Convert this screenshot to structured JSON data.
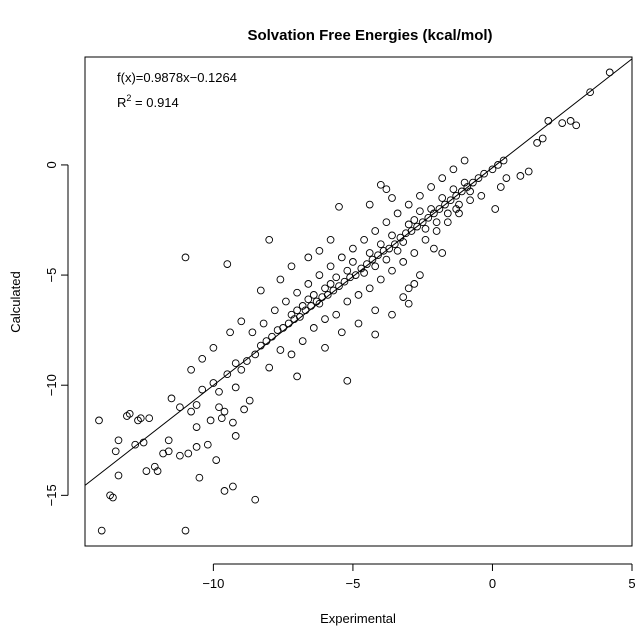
{
  "chart_data": {
    "type": "scatter",
    "title": "Solvation Free Energies (kcal/mol)",
    "xlabel": "Experimental",
    "ylabel": "Calculated",
    "xlim": [
      -14.6,
      5.0
    ],
    "ylim": [
      -17.3,
      4.9
    ],
    "xticks": [
      -10,
      -5,
      0,
      5
    ],
    "yticks": [
      -15,
      -10,
      -5,
      0
    ],
    "xtick_labels": [
      "−10",
      "−5",
      "0",
      "5"
    ],
    "ytick_labels": [
      "−15",
      "−10",
      "−5",
      "0"
    ],
    "grid": false,
    "legend": "none",
    "annotations": {
      "equation": "f(x)=0.9878x−0.1264",
      "r2_label": "R",
      "r2_exp": "2",
      "r2_value": " = 0.914"
    },
    "fit_line": {
      "slope": 0.9878,
      "intercept": -0.1264
    },
    "marker_color": "#000000",
    "series": [
      {
        "points": [
          [
            -14.1,
            -11.6
          ],
          [
            -14.0,
            -16.6
          ],
          [
            -13.7,
            -15.0
          ],
          [
            -13.6,
            -15.1
          ],
          [
            -13.5,
            -13.0
          ],
          [
            -13.4,
            -12.5
          ],
          [
            -13.4,
            -14.1
          ],
          [
            -13.0,
            -11.3
          ],
          [
            -12.8,
            -12.7
          ],
          [
            -12.7,
            -11.6
          ],
          [
            -12.6,
            -11.5
          ],
          [
            -12.5,
            -12.6
          ],
          [
            -12.3,
            -11.5
          ],
          [
            -12.1,
            -13.7
          ],
          [
            -12.0,
            -13.9
          ],
          [
            -11.8,
            -13.1
          ],
          [
            -11.6,
            -12.5
          ],
          [
            -11.6,
            -13.0
          ],
          [
            -11.2,
            -13.2
          ],
          [
            -11.0,
            -16.6
          ],
          [
            -10.9,
            -13.1
          ],
          [
            -10.6,
            -12.8
          ],
          [
            -10.6,
            -10.9
          ],
          [
            -10.5,
            -14.2
          ],
          [
            -10.2,
            -12.7
          ],
          [
            -9.9,
            -13.4
          ],
          [
            -9.6,
            -14.8
          ],
          [
            -9.6,
            -11.2
          ],
          [
            -9.3,
            -14.6
          ],
          [
            -9.2,
            -12.3
          ],
          [
            -8.5,
            -15.2
          ],
          [
            -11.0,
            -4.2
          ],
          [
            -9.5,
            -4.5
          ],
          [
            -8.0,
            -3.4
          ],
          [
            -5.5,
            -1.9
          ],
          [
            -9.7,
            -11.5
          ],
          [
            -8.7,
            -10.7
          ],
          [
            -13.1,
            -11.4
          ],
          [
            -12.4,
            -13.9
          ],
          [
            -9.3,
            -11.7
          ],
          [
            -8.9,
            -11.1
          ],
          [
            -10.1,
            -11.6
          ],
          [
            -7.0,
            -9.6
          ],
          [
            -5.2,
            -9.8
          ],
          [
            -4.2,
            -7.7
          ],
          [
            -3.2,
            -6.0
          ],
          [
            -2.8,
            -5.4
          ],
          [
            -3.0,
            -6.3
          ],
          [
            -2.1,
            -3.8
          ],
          [
            -1.8,
            -4.0
          ],
          [
            -1.3,
            -2.0
          ],
          [
            -0.8,
            -1.2
          ],
          [
            0.1,
            -2.0
          ],
          [
            0.3,
            -1.0
          ],
          [
            0.5,
            -0.6
          ],
          [
            1.0,
            -0.5
          ],
          [
            1.3,
            -0.3
          ],
          [
            1.6,
            1.0
          ],
          [
            2.0,
            2.0
          ],
          [
            2.5,
            1.9
          ],
          [
            3.0,
            1.8
          ],
          [
            3.5,
            3.3
          ],
          [
            4.2,
            4.2
          ],
          [
            2.8,
            2.0
          ],
          [
            1.8,
            1.2
          ],
          [
            -11.5,
            -10.6
          ],
          [
            -11.2,
            -11.0
          ],
          [
            -10.8,
            -11.2
          ],
          [
            -10.4,
            -10.2
          ],
          [
            -10.0,
            -9.9
          ],
          [
            -9.8,
            -10.3
          ],
          [
            -9.5,
            -9.5
          ],
          [
            -9.2,
            -9.0
          ],
          [
            -9.0,
            -9.3
          ],
          [
            -8.8,
            -8.9
          ],
          [
            -8.5,
            -8.6
          ],
          [
            -8.3,
            -8.2
          ],
          [
            -8.1,
            -8.0
          ],
          [
            -7.9,
            -7.8
          ],
          [
            -7.7,
            -7.5
          ],
          [
            -7.5,
            -7.4
          ],
          [
            -7.3,
            -7.2
          ],
          [
            -7.1,
            -7.0
          ],
          [
            -6.9,
            -6.9
          ],
          [
            -6.7,
            -6.6
          ],
          [
            -6.5,
            -6.4
          ],
          [
            -6.3,
            -6.2
          ],
          [
            -6.1,
            -6.0
          ],
          [
            -5.9,
            -5.9
          ],
          [
            -5.7,
            -5.7
          ],
          [
            -5.5,
            -5.5
          ],
          [
            -5.3,
            -5.3
          ],
          [
            -5.1,
            -5.1
          ],
          [
            -4.9,
            -5.0
          ],
          [
            -4.7,
            -4.7
          ],
          [
            -4.5,
            -4.5
          ],
          [
            -4.3,
            -4.3
          ],
          [
            -4.1,
            -4.1
          ],
          [
            -3.9,
            -3.9
          ],
          [
            -3.7,
            -3.8
          ],
          [
            -3.5,
            -3.6
          ],
          [
            -3.3,
            -3.3
          ],
          [
            -3.1,
            -3.1
          ],
          [
            -2.9,
            -3.0
          ],
          [
            -2.7,
            -2.8
          ],
          [
            -2.5,
            -2.6
          ],
          [
            -2.3,
            -2.4
          ],
          [
            -2.1,
            -2.2
          ],
          [
            -1.9,
            -2.0
          ],
          [
            -1.7,
            -1.8
          ],
          [
            -1.5,
            -1.6
          ],
          [
            -1.3,
            -1.4
          ],
          [
            -1.1,
            -1.2
          ],
          [
            -0.9,
            -1.0
          ],
          [
            -0.7,
            -0.8
          ],
          [
            -0.5,
            -0.6
          ],
          [
            -0.3,
            -0.4
          ],
          [
            0.0,
            -0.2
          ],
          [
            0.2,
            0.0
          ],
          [
            0.4,
            0.2
          ],
          [
            -8.0,
            -9.2
          ],
          [
            -7.6,
            -8.4
          ],
          [
            -7.2,
            -8.6
          ],
          [
            -6.8,
            -8.0
          ],
          [
            -6.4,
            -7.4
          ],
          [
            -6.0,
            -7.0
          ],
          [
            -5.6,
            -6.8
          ],
          [
            -5.2,
            -6.2
          ],
          [
            -4.8,
            -5.9
          ],
          [
            -4.4,
            -5.6
          ],
          [
            -4.0,
            -5.2
          ],
          [
            -3.6,
            -4.8
          ],
          [
            -3.2,
            -4.4
          ],
          [
            -2.8,
            -4.0
          ],
          [
            -2.4,
            -3.4
          ],
          [
            -2.0,
            -3.0
          ],
          [
            -1.6,
            -2.6
          ],
          [
            -1.2,
            -2.2
          ],
          [
            -0.8,
            -1.6
          ],
          [
            -0.4,
            -1.4
          ],
          [
            -8.6,
            -7.6
          ],
          [
            -8.2,
            -7.2
          ],
          [
            -7.8,
            -6.6
          ],
          [
            -7.4,
            -6.2
          ],
          [
            -7.0,
            -5.8
          ],
          [
            -6.6,
            -5.4
          ],
          [
            -6.2,
            -5.0
          ],
          [
            -5.8,
            -4.6
          ],
          [
            -5.4,
            -4.2
          ],
          [
            -5.0,
            -3.8
          ],
          [
            -4.6,
            -3.4
          ],
          [
            -4.2,
            -3.0
          ],
          [
            -3.8,
            -2.6
          ],
          [
            -3.4,
            -2.2
          ],
          [
            -3.0,
            -1.8
          ],
          [
            -2.6,
            -1.4
          ],
          [
            -2.2,
            -1.0
          ],
          [
            -1.8,
            -0.6
          ],
          [
            -1.4,
            -0.2
          ],
          [
            -1.0,
            0.2
          ],
          [
            -4.0,
            -0.9
          ],
          [
            -3.8,
            -1.1
          ],
          [
            -3.6,
            -1.5
          ],
          [
            -4.4,
            -1.8
          ],
          [
            -5.8,
            -3.4
          ],
          [
            -6.2,
            -3.9
          ],
          [
            -6.6,
            -4.2
          ],
          [
            -7.2,
            -4.6
          ],
          [
            -7.6,
            -5.2
          ],
          [
            -8.3,
            -5.7
          ],
          [
            -9.0,
            -7.1
          ],
          [
            -9.4,
            -7.6
          ],
          [
            -10.0,
            -8.3
          ],
          [
            -10.4,
            -8.8
          ],
          [
            -10.8,
            -9.3
          ],
          [
            -6.0,
            -8.3
          ],
          [
            -5.4,
            -7.6
          ],
          [
            -4.8,
            -7.2
          ],
          [
            -4.2,
            -6.6
          ],
          [
            -3.6,
            -6.8
          ],
          [
            -3.0,
            -5.6
          ],
          [
            -2.6,
            -5.0
          ],
          [
            -9.8,
            -11.0
          ],
          [
            -10.6,
            -11.9
          ],
          [
            -9.2,
            -10.1
          ],
          [
            -5.0,
            -4.4
          ],
          [
            -4.6,
            -4.9
          ],
          [
            -4.4,
            -4.0
          ],
          [
            -4.2,
            -4.6
          ],
          [
            -4.0,
            -3.6
          ],
          [
            -3.8,
            -4.3
          ],
          [
            -3.6,
            -3.2
          ],
          [
            -3.4,
            -3.9
          ],
          [
            -3.2,
            -3.5
          ],
          [
            -3.0,
            -2.7
          ],
          [
            -5.2,
            -4.8
          ],
          [
            -5.6,
            -5.1
          ],
          [
            -5.8,
            -5.4
          ],
          [
            -6.0,
            -5.6
          ],
          [
            -6.2,
            -6.3
          ],
          [
            -6.4,
            -5.9
          ],
          [
            -6.6,
            -6.1
          ],
          [
            -6.8,
            -6.4
          ],
          [
            -7.0,
            -6.6
          ],
          [
            -7.2,
            -6.8
          ],
          [
            -2.8,
            -2.5
          ],
          [
            -2.6,
            -2.1
          ],
          [
            -2.4,
            -2.9
          ],
          [
            -2.2,
            -2.0
          ],
          [
            -2.0,
            -2.6
          ],
          [
            -1.8,
            -1.5
          ],
          [
            -1.6,
            -2.2
          ],
          [
            -1.4,
            -1.1
          ],
          [
            -1.2,
            -1.8
          ],
          [
            -1.0,
            -0.8
          ]
        ]
      }
    ]
  }
}
